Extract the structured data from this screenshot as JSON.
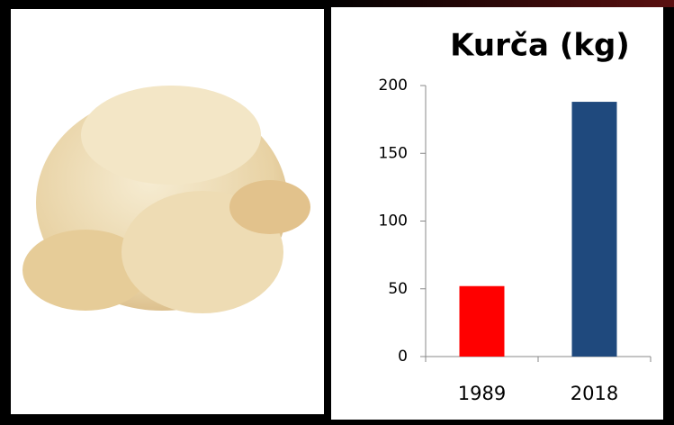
{
  "chart_data": {
    "type": "bar",
    "title": "Kurča (kg)",
    "categories": [
      "1989",
      "2018"
    ],
    "values": [
      52,
      188
    ],
    "colors": [
      "#ff0000",
      "#1f497d"
    ],
    "ylim": [
      0,
      200
    ],
    "yticks": [
      0,
      50,
      100,
      150,
      200
    ],
    "grid": false
  }
}
